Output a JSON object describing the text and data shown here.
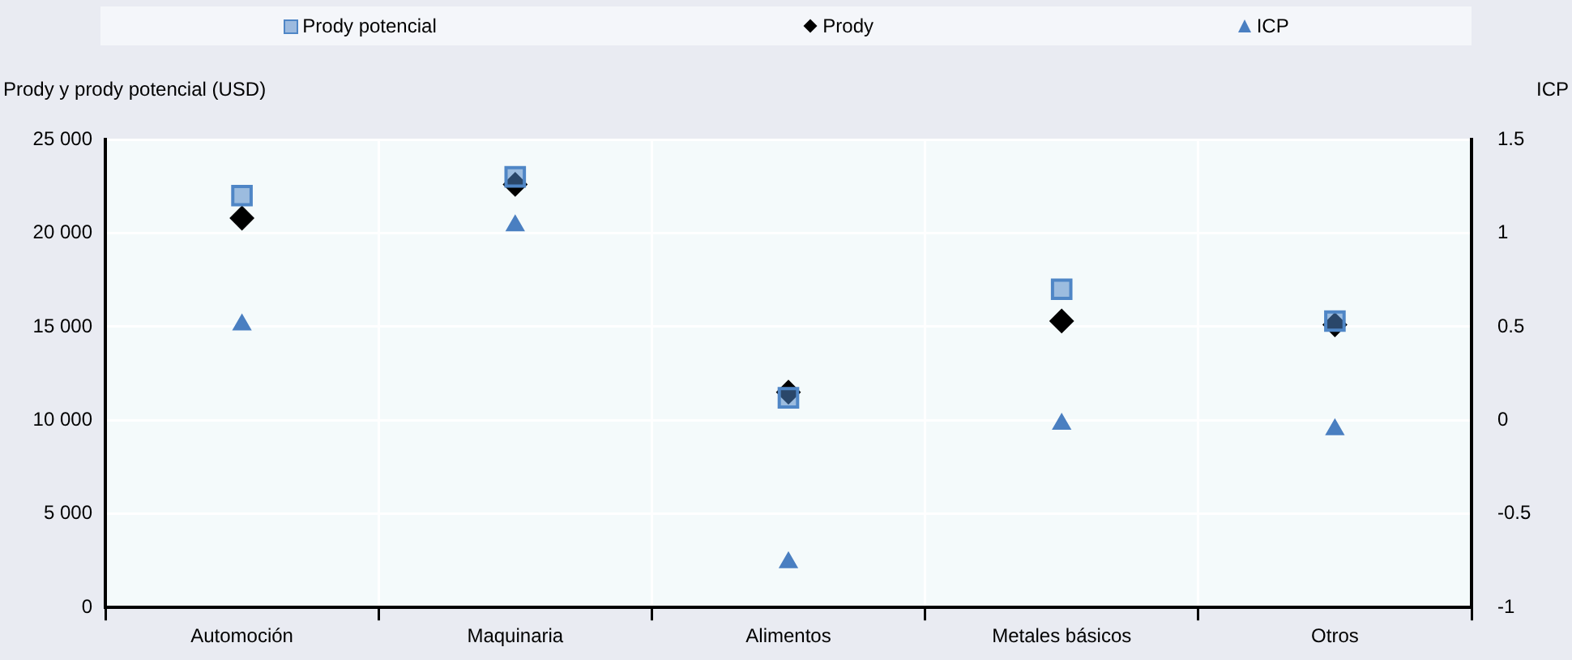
{
  "chart_data": {
    "type": "scatter",
    "ylabel": "Prody y prody potencial (USD)",
    "y2label": "ICP",
    "categories": [
      "Automoción",
      "Maquinaria",
      "Alimentos",
      "Metales básicos",
      "Otros"
    ],
    "series": [
      {
        "name": "Prody potencial",
        "color": "#4f86c6",
        "marker": "square",
        "values": [
          22000,
          23000,
          11200,
          17000,
          15300
        ]
      },
      {
        "name": "Prody",
        "color": "#000000",
        "marker": "diamond",
        "values": [
          20800,
          22600,
          11500,
          15300,
          15100
        ]
      },
      {
        "name": "ICP",
        "color": "#4a7fc1",
        "marker": "triangle",
        "axis": "y2",
        "values": [
          0.51,
          1.04,
          -0.76,
          -0.02,
          -0.05
        ]
      }
    ],
    "ylim": [
      0,
      25000
    ],
    "yticks": [
      {
        "value": 0,
        "label": "0"
      },
      {
        "value": 5000,
        "label": "5 000"
      },
      {
        "value": 10000,
        "label": "10 000"
      },
      {
        "value": 15000,
        "label": "15 000"
      },
      {
        "value": 20000,
        "label": "20 000"
      },
      {
        "value": 25000,
        "label": "25 000"
      }
    ],
    "y2lim": [
      -1,
      1.5
    ],
    "y2ticks": [
      -1,
      -0.5,
      0,
      0.5,
      1,
      1.5
    ],
    "grid": true,
    "legend": "top"
  }
}
